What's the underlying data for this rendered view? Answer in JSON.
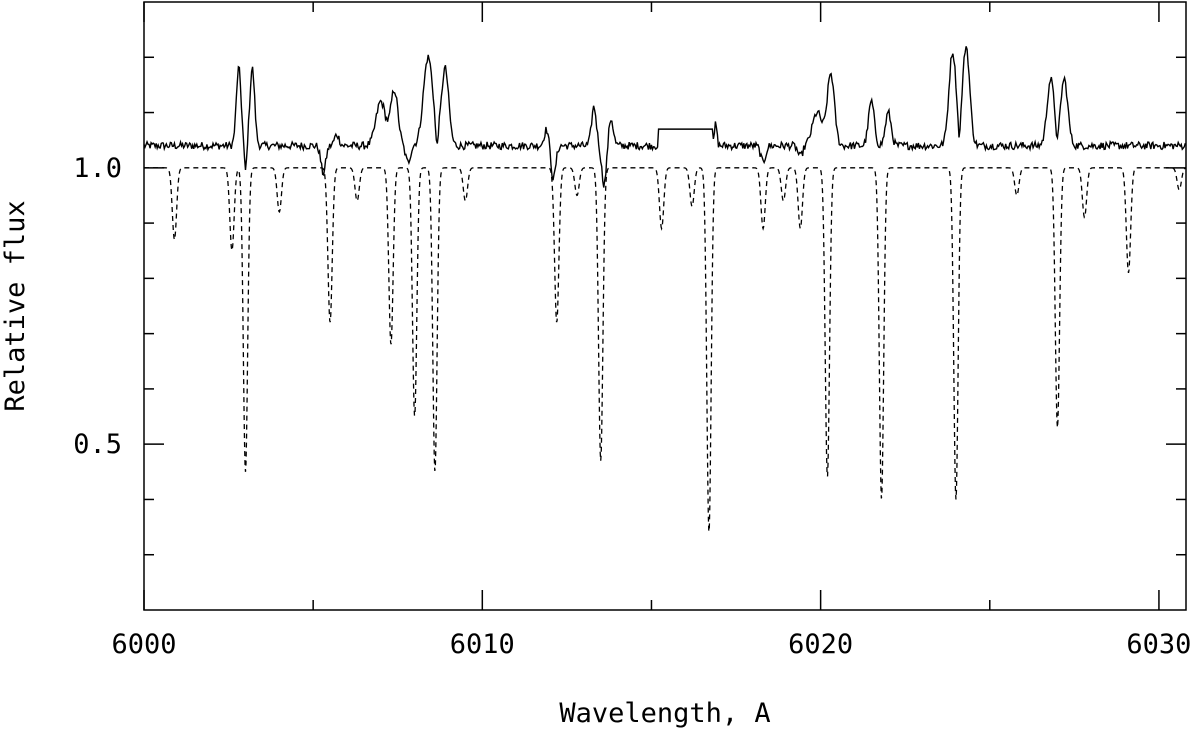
{
  "chart_data": {
    "type": "line",
    "title": "",
    "xlabel": "Wavelength, A",
    "ylabel": "Relative flux",
    "xlim": [
      6000,
      6030.8
    ],
    "ylim": [
      0.2,
      1.3
    ],
    "x_major_ticks": [
      6000,
      6010,
      6020,
      6030
    ],
    "x_minor_ticks": [
      6005,
      6015,
      6025
    ],
    "y_major_ticks": [
      0.5,
      1.0
    ],
    "y_minor_ticks": [
      0.3,
      0.4,
      0.6,
      0.7,
      0.8,
      0.9,
      1.1,
      1.2
    ],
    "x_tick_labels": [
      "6000",
      "6010",
      "6020",
      "6030"
    ],
    "y_tick_labels": [
      "0.5",
      "1.0"
    ],
    "grid": false,
    "series": [
      {
        "style": "solid",
        "color": "#000000",
        "continuum": 1.04,
        "noise_amplitude": 0.007,
        "flat_segment": [
          6015.2,
          6016.8,
          1.07
        ],
        "features": [
          [
            6002.8,
            0.1,
            0.14
          ],
          [
            6003.2,
            0.1,
            0.14
          ],
          [
            6003.0,
            0.05,
            -0.05
          ],
          [
            6005.3,
            0.1,
            -0.05
          ],
          [
            6005.7,
            0.1,
            0.02
          ],
          [
            6007.0,
            0.2,
            0.08
          ],
          [
            6007.4,
            0.15,
            0.1
          ],
          [
            6007.8,
            0.1,
            -0.03
          ],
          [
            6008.4,
            0.2,
            0.16
          ],
          [
            6008.9,
            0.15,
            0.14
          ],
          [
            6008.65,
            0.05,
            -0.04
          ],
          [
            6012.1,
            0.1,
            -0.06
          ],
          [
            6011.9,
            0.1,
            0.03
          ],
          [
            6013.3,
            0.1,
            0.07
          ],
          [
            6013.6,
            0.1,
            -0.07
          ],
          [
            6013.8,
            0.1,
            0.05
          ],
          [
            6016.9,
            0.05,
            0.04
          ],
          [
            6018.3,
            0.1,
            -0.03
          ],
          [
            6019.4,
            0.1,
            -0.02
          ],
          [
            6019.9,
            0.2,
            0.06
          ],
          [
            6020.3,
            0.15,
            0.13
          ],
          [
            6021.5,
            0.12,
            0.08
          ],
          [
            6022.0,
            0.12,
            0.06
          ],
          [
            6023.9,
            0.15,
            0.17
          ],
          [
            6024.3,
            0.15,
            0.18
          ],
          [
            6024.1,
            0.05,
            -0.04
          ],
          [
            6026.8,
            0.15,
            0.12
          ],
          [
            6027.2,
            0.15,
            0.12
          ],
          [
            6027.0,
            0.05,
            -0.03
          ]
        ]
      },
      {
        "style": "dashed",
        "color": "#000000",
        "continuum": 1.0,
        "line_width": 0.09,
        "lines": [
          [
            6000.9,
            0.13
          ],
          [
            6002.6,
            0.15
          ],
          [
            6003.0,
            0.55
          ],
          [
            6004.0,
            0.08
          ],
          [
            6005.5,
            0.28
          ],
          [
            6006.3,
            0.06
          ],
          [
            6007.3,
            0.32
          ],
          [
            6008.0,
            0.45
          ],
          [
            6008.6,
            0.55
          ],
          [
            6009.5,
            0.06
          ],
          [
            6012.2,
            0.28
          ],
          [
            6012.8,
            0.05
          ],
          [
            6013.5,
            0.53
          ],
          [
            6015.3,
            0.11
          ],
          [
            6016.2,
            0.07
          ],
          [
            6016.7,
            0.66
          ],
          [
            6018.3,
            0.11
          ],
          [
            6018.9,
            0.06
          ],
          [
            6019.4,
            0.11
          ],
          [
            6020.2,
            0.56
          ],
          [
            6021.8,
            0.6
          ],
          [
            6024.0,
            0.6
          ],
          [
            6025.8,
            0.05
          ],
          [
            6027.0,
            0.47
          ],
          [
            6027.8,
            0.09
          ],
          [
            6029.1,
            0.19
          ],
          [
            6030.6,
            0.04
          ]
        ]
      }
    ]
  }
}
